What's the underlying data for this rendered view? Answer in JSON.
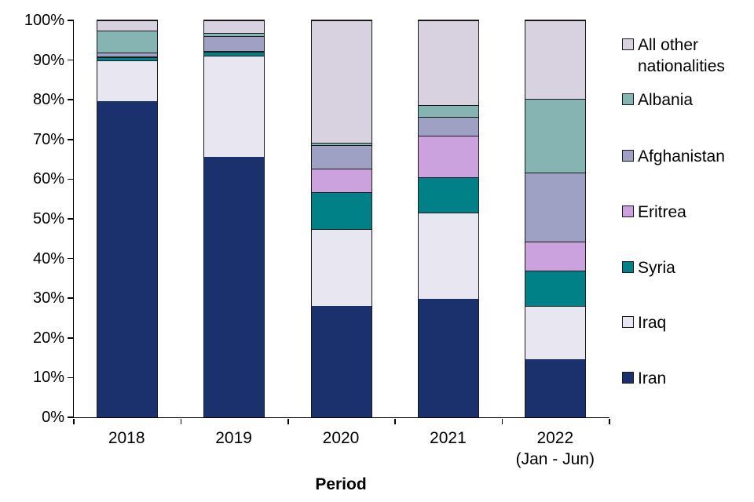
{
  "chart_data": {
    "type": "bar",
    "subtype": "stacked-100-percent",
    "title": "",
    "xlabel": "Period",
    "ylabel": "",
    "ylim": [
      0,
      100
    ],
    "grid": false,
    "y_tick_labels": [
      "100%",
      "90%",
      "80%",
      "70%",
      "60%",
      "50%",
      "40%",
      "30%",
      "20%",
      "10%",
      "0%"
    ],
    "categories": [
      "2018",
      "2019",
      "2020",
      "2021",
      "2022"
    ],
    "category_sublabels": [
      "",
      "",
      "",
      "",
      "(Jan - Jun)"
    ],
    "series": [
      {
        "name": "Iran",
        "color": "#1a316e",
        "values": [
          79.6,
          65.7,
          28.1,
          29.9,
          14.6
        ]
      },
      {
        "name": "Iraq",
        "color": "#e8e6f0",
        "values": [
          10.4,
          25.4,
          19.4,
          21.7,
          13.5
        ]
      },
      {
        "name": "Syria",
        "color": "#008087",
        "values": [
          0.7,
          1.0,
          9.3,
          8.9,
          8.9
        ]
      },
      {
        "name": "Eritrea",
        "color": "#cba2dd",
        "values": [
          0.1,
          0.1,
          5.9,
          10.4,
          7.3
        ]
      },
      {
        "name": "Afghanistan",
        "color": "#9ea0c4",
        "values": [
          1.0,
          3.7,
          5.9,
          4.9,
          17.4
        ]
      },
      {
        "name": "Albania",
        "color": "#86b4b2",
        "values": [
          5.5,
          0.8,
          0.6,
          2.9,
          18.6
        ]
      },
      {
        "name": "All other nationalities",
        "color": "#d8d2e0",
        "values": [
          2.7,
          3.3,
          30.8,
          21.3,
          19.7
        ]
      }
    ],
    "legend": {
      "position": "right",
      "order_top_to_bottom": [
        "All other nationalities",
        "Albania",
        "Afghanistan",
        "Eritrea",
        "Syria",
        "Iraq",
        "Iran"
      ]
    }
  }
}
